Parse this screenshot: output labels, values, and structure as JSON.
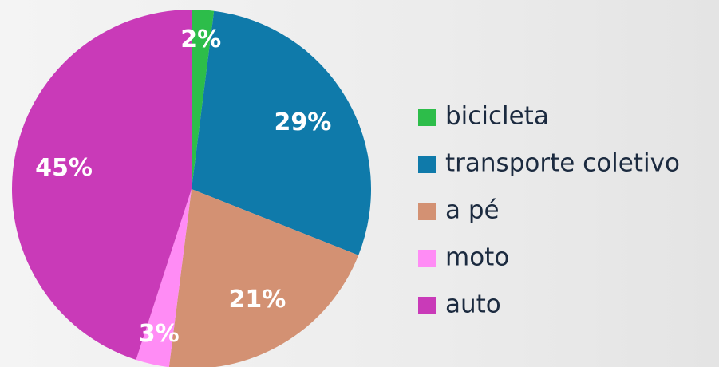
{
  "chart_data": {
    "type": "pie",
    "categories": [
      "bicicleta",
      "transporte coletivo",
      "a pé",
      "moto",
      "auto"
    ],
    "values": [
      2,
      29,
      21,
      3,
      45
    ],
    "value_labels": [
      "2%",
      "29%",
      "21%",
      "3%",
      "45%"
    ],
    "colors": [
      "#2dbd4a",
      "#0f7aaa",
      "#d39173",
      "#ff8cf5",
      "#c93ab8"
    ],
    "legend": "right"
  }
}
